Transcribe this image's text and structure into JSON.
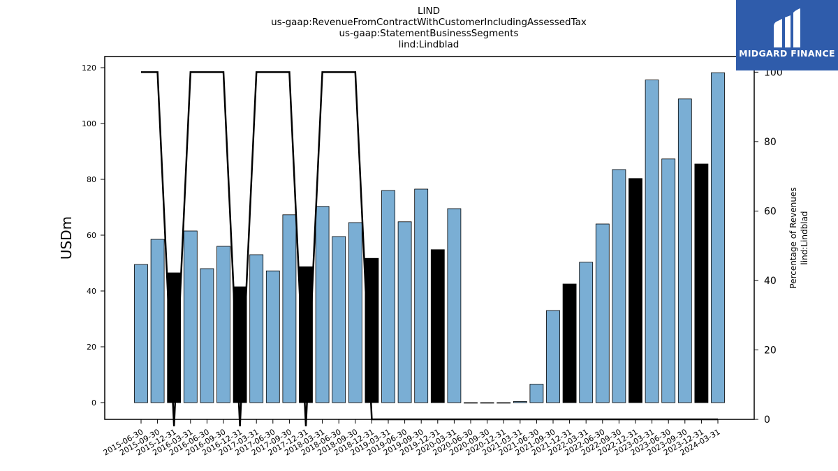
{
  "header": {
    "title_lines": [
      "LIND",
      "us-gaap:RevenueFromContractWithCustomerIncludingAssessedTax",
      "us-gaap:StatementBusinessSegments",
      "lind:Lindblad"
    ]
  },
  "logo": {
    "text": "MIDGARD FINANCE",
    "icon": "midgard-logo-icon",
    "color": "#2f5cab"
  },
  "chart_data": {
    "type": "bar",
    "categories": [
      "2015-06-30",
      "2015-09-30",
      "2015-12-31",
      "2016-03-31",
      "2016-06-30",
      "2016-09-30",
      "2016-12-31",
      "2017-03-31",
      "2017-06-30",
      "2017-09-30",
      "2017-12-31",
      "2018-03-31",
      "2018-06-30",
      "2018-09-30",
      "2018-12-31",
      "2019-03-31",
      "2019-06-30",
      "2019-09-30",
      "2019-12-31",
      "2020-03-31",
      "2020-06-30",
      "2020-09-30",
      "2020-12-31",
      "2021-03-31",
      "2021-06-30",
      "2021-09-30",
      "2021-12-31",
      "2022-03-31",
      "2022-06-30",
      "2022-09-30",
      "2022-12-31",
      "2023-03-31",
      "2023-06-30",
      "2023-09-30",
      "2023-12-31",
      "2024-03-31"
    ],
    "series": [
      {
        "values": [
          49.5,
          58.5,
          46.5,
          61.5,
          48.0,
          56.0,
          41.5,
          53.0,
          47.2,
          67.3,
          48.7,
          70.3,
          59.5,
          64.5,
          51.7,
          76.0,
          64.8,
          76.5,
          54.8,
          69.5,
          0.0,
          0.0,
          0.0,
          0.4,
          6.6,
          33.0,
          42.5,
          50.3,
          64.0,
          83.5,
          80.3,
          115.6,
          87.3,
          108.8,
          85.5,
          118.2
        ],
        "colors": [
          "#7aaed4",
          "#7aaed4",
          "#000000",
          "#7aaed4",
          "#7aaed4",
          "#7aaed4",
          "#000000",
          "#7aaed4",
          "#7aaed4",
          "#7aaed4",
          "#000000",
          "#7aaed4",
          "#7aaed4",
          "#7aaed4",
          "#000000",
          "#7aaed4",
          "#7aaed4",
          "#7aaed4",
          "#000000",
          "#7aaed4",
          "#7aaed4",
          "#7aaed4",
          "#000000",
          "#7aaed4",
          "#7aaed4",
          "#7aaed4",
          "#000000",
          "#7aaed4",
          "#7aaed4",
          "#7aaed4",
          "#000000",
          "#7aaed4",
          "#7aaed4",
          "#7aaed4",
          "#000000",
          "#7aaed4"
        ]
      },
      {
        "axis": "right",
        "line_color": "#000000",
        "values": [
          100,
          100,
          -2,
          100,
          100,
          100,
          -2,
          100,
          100,
          100,
          -2,
          100,
          100,
          100,
          0,
          0,
          0,
          0,
          0,
          0,
          0,
          0,
          0,
          0,
          0,
          0,
          0,
          0,
          0,
          0,
          0,
          0,
          0,
          0,
          0,
          0
        ]
      }
    ],
    "ylabel": "USDm",
    "y2label_lines": [
      "Percentage of Revenues",
      "lind:Lindblad"
    ],
    "ylim": [
      -6,
      124
    ],
    "y2lim": [
      0,
      104.5
    ],
    "yticks": [
      0,
      20,
      40,
      60,
      80,
      100,
      120
    ],
    "y2ticks": [
      0,
      20,
      40,
      60,
      80,
      100
    ],
    "colors": {
      "bar_default": "#7aaed4",
      "bar_q4": "#000000",
      "line": "#000000"
    },
    "grid": false,
    "legend": "none"
  }
}
